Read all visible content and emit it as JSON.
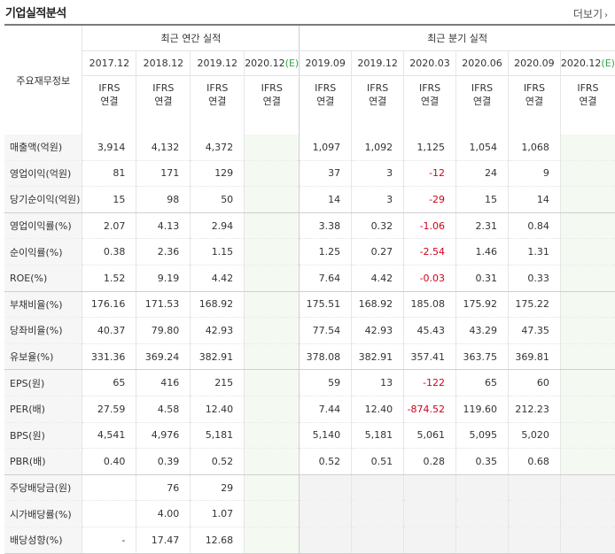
{
  "title": "기업실적분석",
  "more_label": "더보기",
  "header": {
    "row_title": "주요재무정보",
    "annual_group": "최근 연간 실적",
    "quarter_group": "최근 분기 실적"
  },
  "periods": [
    {
      "label": "2017.12",
      "ifrs1": "IFRS",
      "ifrs2": "연결",
      "est": false
    },
    {
      "label": "2018.12",
      "ifrs1": "IFRS",
      "ifrs2": "연결",
      "est": false
    },
    {
      "label": "2019.12",
      "ifrs1": "IFRS",
      "ifrs2": "연결",
      "est": false
    },
    {
      "label": "2020.12",
      "est_mark": "(E)",
      "ifrs1": "IFRS",
      "ifrs2": "연결",
      "est": true
    },
    {
      "label": "2019.09",
      "ifrs1": "IFRS",
      "ifrs2": "연결",
      "est": false
    },
    {
      "label": "2019.12",
      "ifrs1": "IFRS",
      "ifrs2": "연결",
      "est": false
    },
    {
      "label": "2020.03",
      "ifrs1": "IFRS",
      "ifrs2": "연결",
      "est": false
    },
    {
      "label": "2020.06",
      "ifrs1": "IFRS",
      "ifrs2": "연결",
      "est": false
    },
    {
      "label": "2020.09",
      "ifrs1": "IFRS",
      "ifrs2": "연결",
      "est": false
    },
    {
      "label": "2020.12",
      "est_mark": "(E)",
      "ifrs1": "IFRS",
      "ifrs2": "연결",
      "est": true
    }
  ],
  "groups": [
    {
      "rows": [
        {
          "label": "매출액(억원)",
          "values": [
            "3,914",
            "4,132",
            "4,372",
            "",
            "1,097",
            "1,092",
            "1,125",
            "1,054",
            "1,068",
            ""
          ]
        },
        {
          "label": "영업이익(억원)",
          "values": [
            "81",
            "171",
            "129",
            "",
            "37",
            "3",
            "-12",
            "24",
            "9",
            ""
          ]
        },
        {
          "label": "당기순이익(억원)",
          "values": [
            "15",
            "98",
            "50",
            "",
            "14",
            "3",
            "-29",
            "15",
            "14",
            ""
          ]
        }
      ]
    },
    {
      "rows": [
        {
          "label": "영업이익률(%)",
          "values": [
            "2.07",
            "4.13",
            "2.94",
            "",
            "3.38",
            "0.32",
            "-1.06",
            "2.31",
            "0.84",
            ""
          ]
        },
        {
          "label": "순이익률(%)",
          "values": [
            "0.38",
            "2.36",
            "1.15",
            "",
            "1.25",
            "0.27",
            "-2.54",
            "1.46",
            "1.31",
            ""
          ]
        },
        {
          "label": "ROE(%)",
          "values": [
            "1.52",
            "9.19",
            "4.42",
            "",
            "7.64",
            "4.42",
            "-0.03",
            "0.31",
            "0.33",
            ""
          ]
        }
      ]
    },
    {
      "rows": [
        {
          "label": "부채비율(%)",
          "values": [
            "176.16",
            "171.53",
            "168.92",
            "",
            "175.51",
            "168.92",
            "185.08",
            "175.92",
            "175.22",
            ""
          ]
        },
        {
          "label": "당좌비율(%)",
          "values": [
            "40.37",
            "79.80",
            "42.93",
            "",
            "77.54",
            "42.93",
            "45.43",
            "43.29",
            "47.35",
            ""
          ]
        },
        {
          "label": "유보율(%)",
          "values": [
            "331.36",
            "369.24",
            "382.91",
            "",
            "378.08",
            "382.91",
            "357.41",
            "363.75",
            "369.81",
            ""
          ]
        }
      ]
    },
    {
      "rows": [
        {
          "label": "EPS(원)",
          "values": [
            "65",
            "416",
            "215",
            "",
            "59",
            "13",
            "-122",
            "65",
            "60",
            ""
          ]
        },
        {
          "label": "PER(배)",
          "values": [
            "27.59",
            "4.58",
            "12.40",
            "",
            "7.44",
            "12.40",
            "-874.52",
            "119.60",
            "212.23",
            ""
          ]
        },
        {
          "label": "BPS(원)",
          "values": [
            "4,541",
            "4,976",
            "5,181",
            "",
            "5,140",
            "5,181",
            "5,061",
            "5,095",
            "5,020",
            ""
          ]
        },
        {
          "label": "PBR(배)",
          "values": [
            "0.40",
            "0.39",
            "0.52",
            "",
            "0.52",
            "0.51",
            "0.28",
            "0.35",
            "0.68",
            ""
          ]
        }
      ]
    },
    {
      "dividend": true,
      "rows": [
        {
          "label": "주당배당금(원)",
          "values": [
            "",
            "76",
            "29",
            "",
            "",
            "",
            "",
            "",
            "",
            ""
          ]
        },
        {
          "label": "시가배당률(%)",
          "values": [
            "",
            "4.00",
            "1.07",
            "",
            "",
            "",
            "",
            "",
            "",
            ""
          ]
        },
        {
          "label": "배당성향(%)",
          "values": [
            "-",
            "17.47",
            "12.68",
            "",
            "",
            "",
            "",
            "",
            "",
            ""
          ]
        }
      ]
    }
  ],
  "colors": {
    "ifrs": "#e8591a",
    "negative": "#d0021b",
    "estimate_bg": "#f4f9f1",
    "estimate_mark": "#2ea84a"
  }
}
